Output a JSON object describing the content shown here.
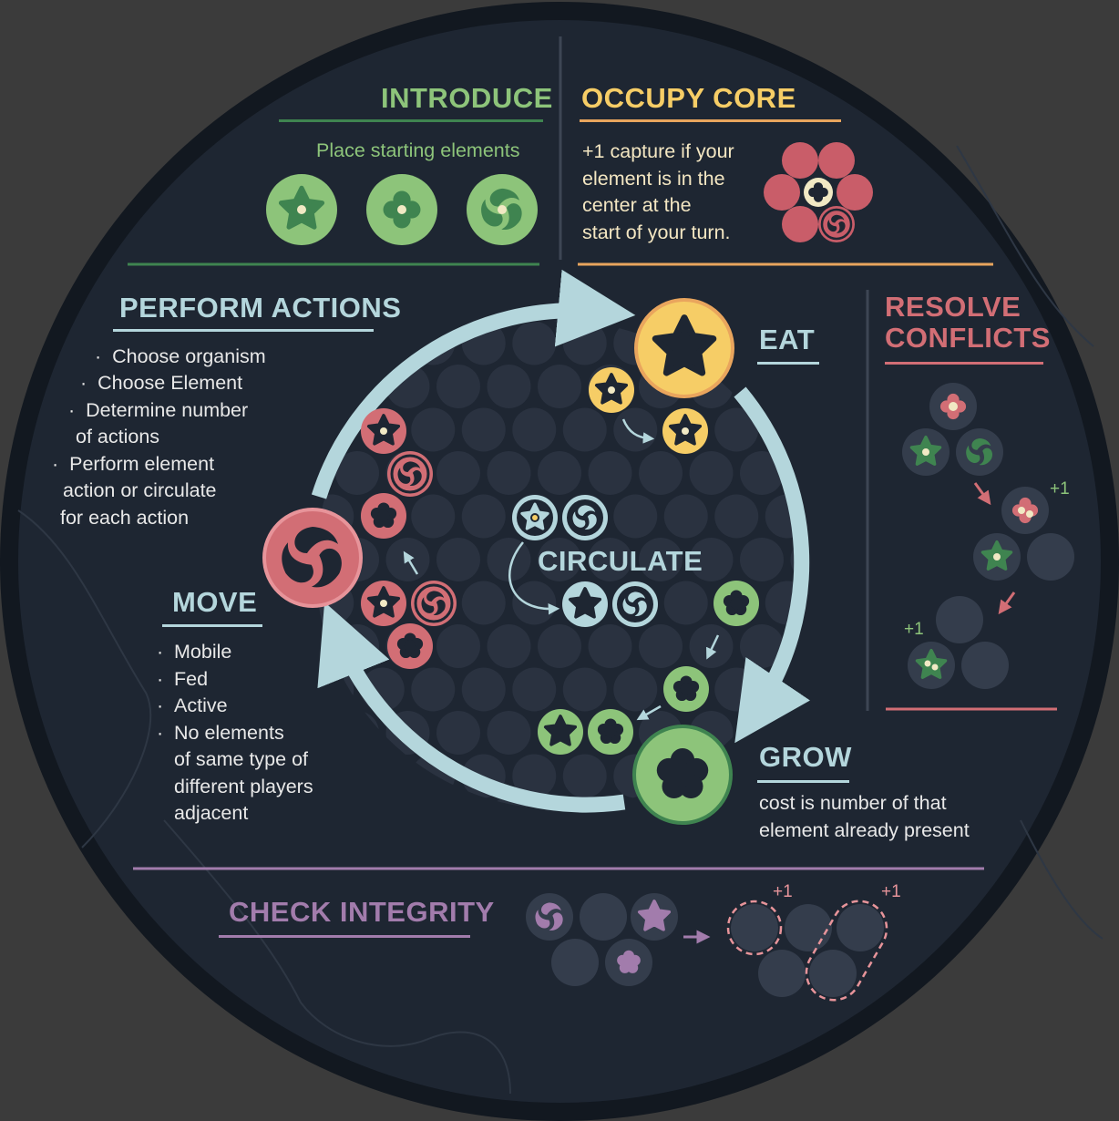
{
  "colors": {
    "board": "#1e2632",
    "rim": "#121820",
    "green": "#8dc47a",
    "green_dark": "#3f8450",
    "yellow": "#f6cd66",
    "orange": "#e9a55d",
    "red": "#d26e75",
    "pink": "#e7949a",
    "light_blue": "#b4d6dc",
    "purple": "#a27cac",
    "slot": "#343d4c"
  },
  "introduce": {
    "title": "INTRODUCE",
    "subtitle": "Place starting elements",
    "elements": [
      "star-icon",
      "flower-icon",
      "swirl-icon"
    ]
  },
  "occupy_core": {
    "title": "OCCUPY CORE",
    "lines": [
      "+1 capture if your",
      "element is in the",
      "center at the",
      "start of your turn."
    ]
  },
  "perform_actions": {
    "title": "PERFORM ACTIONS",
    "items": [
      {
        "b": "·",
        "t": "Choose organism",
        "t2": ""
      },
      {
        "b": "·",
        "t": "Choose Element",
        "t2": ""
      },
      {
        "b": "·",
        "t": "Determine number",
        "t2": "of actions"
      },
      {
        "b": "·",
        "t": "Perform element",
        "t2": "action or circulate"
      },
      {
        "b": "",
        "t": "",
        "t2": "for each action"
      }
    ]
  },
  "eat": {
    "title": "EAT"
  },
  "resolve": {
    "title1": "RESOLVE",
    "title2": "CONFLICTS",
    "plus1": "+1",
    "plus2": "+1"
  },
  "circulate": {
    "title": "CIRCULATE"
  },
  "move": {
    "title": "MOVE",
    "items": [
      {
        "b": "·",
        "t": "Mobile"
      },
      {
        "b": "·",
        "t": "Fed"
      },
      {
        "b": "·",
        "t": "Active"
      },
      {
        "b": "·",
        "t": "No elements"
      },
      {
        "b": "",
        "t": "of same type of"
      },
      {
        "b": "",
        "t": "different players"
      },
      {
        "b": "",
        "t": "adjacent"
      }
    ]
  },
  "grow": {
    "title": "GROW",
    "lines": [
      "cost is number of that",
      "element already present"
    ]
  },
  "check": {
    "title": "CHECK INTEGRITY",
    "plus1": "+1",
    "plus2": "+1"
  }
}
